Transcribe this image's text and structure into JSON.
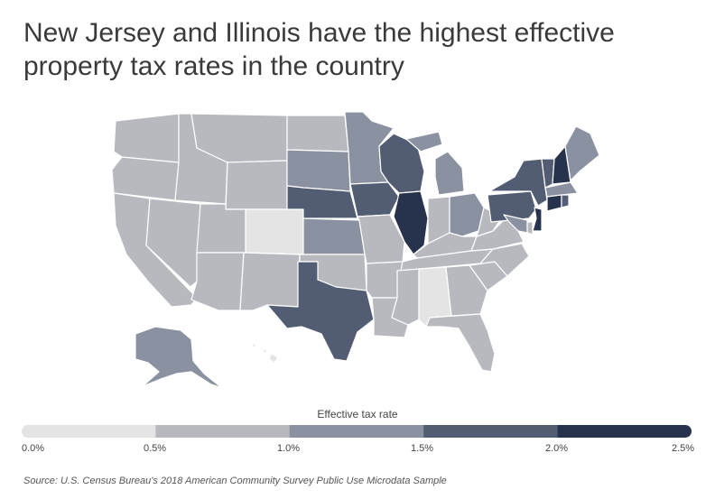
{
  "title": "New Jersey and Illinois have the highest effective property tax rates in the country",
  "legend": {
    "title": "Effective tax rate",
    "ticks": [
      "0.0%",
      "0.5%",
      "1.0%",
      "1.5%",
      "2.0%",
      "2.5%"
    ],
    "colors": [
      "#e4e4e4",
      "#b7b9bf",
      "#8a92a1",
      "#525d74",
      "#27324d"
    ]
  },
  "source": "Source: U.S. Census Bureau's 2018 American Community Survey Public Use Microdata Sample",
  "bins": {
    "WA": 1,
    "OR": 1,
    "CA": 1,
    "NV": 1,
    "ID": 1,
    "MT": 1,
    "WY": 1,
    "UT": 1,
    "CO": 0,
    "AZ": 1,
    "NM": 1,
    "ND": 1,
    "SD": 2,
    "NE": 3,
    "KS": 2,
    "OK": 1,
    "TX": 3,
    "MN": 2,
    "IA": 3,
    "MO": 1,
    "AR": 1,
    "LA": 1,
    "WI": 3,
    "IL": 4,
    "MI": 2,
    "IN": 1,
    "OH": 2,
    "KY": 1,
    "TN": 1,
    "MS": 1,
    "AL": 0,
    "GA": 1,
    "FL": 1,
    "SC": 1,
    "NC": 1,
    "VA": 1,
    "WV": 1,
    "PA": 3,
    "NY": 3,
    "VT": 3,
    "NH": 4,
    "ME": 2,
    "MA": 2,
    "CT": 4,
    "RI": 3,
    "NJ": 4,
    "DE": 1,
    "MD": 2,
    "AK": 2,
    "HI": 0
  }
}
